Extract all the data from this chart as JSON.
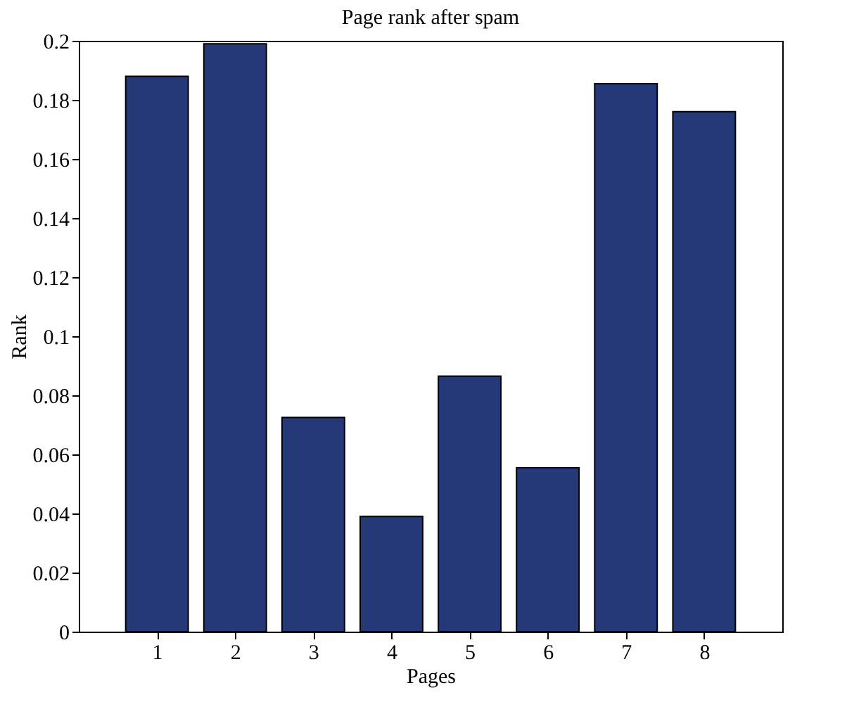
{
  "chart_data": {
    "type": "bar",
    "title": "Page rank after spam",
    "xlabel": "Pages",
    "ylabel": "Rank",
    "x": [
      1,
      2,
      3,
      4,
      5,
      6,
      7,
      8
    ],
    "values": [
      0.188,
      0.199,
      0.0725,
      0.039,
      0.0865,
      0.0555,
      0.1855,
      0.176
    ],
    "color": "#253878",
    "xlim": [
      0,
      9
    ],
    "xticks": [
      1,
      2,
      3,
      4,
      5,
      6,
      7,
      8
    ],
    "ylim": [
      0,
      0.2
    ],
    "yticks": [
      0,
      0.02,
      0.04,
      0.06,
      0.08,
      0.1,
      0.12,
      0.14,
      0.16,
      0.18,
      0.2
    ],
    "grid": false
  }
}
